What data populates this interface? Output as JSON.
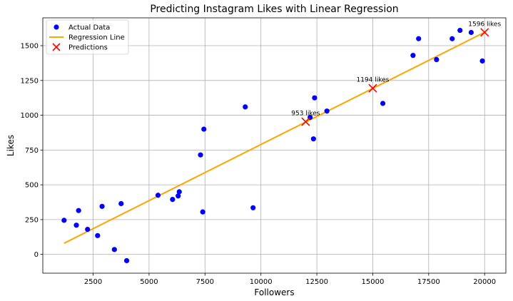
{
  "chart_data": {
    "type": "scatter",
    "title": "Predicting Instagram Likes with Linear Regression",
    "xlabel": "Followers",
    "ylabel": "Likes",
    "xlim": [
      250,
      20950
    ],
    "ylim": [
      -135,
      1700
    ],
    "xticks": [
      2500,
      5000,
      7500,
      10000,
      12500,
      15000,
      17500,
      20000
    ],
    "yticks": [
      0,
      250,
      500,
      750,
      1000,
      1250,
      1500
    ],
    "grid": true,
    "legend_position": "top-left",
    "colors": {
      "actual": "#0000ff",
      "regression": "#ffa500",
      "predictions": "#ff0000"
    },
    "series": [
      {
        "name": "Actual Data",
        "kind": "scatter",
        "points": [
          [
            1200,
            245
          ],
          [
            1750,
            210
          ],
          [
            1850,
            315
          ],
          [
            2250,
            180
          ],
          [
            2700,
            135
          ],
          [
            2900,
            345
          ],
          [
            3450,
            35
          ],
          [
            3750,
            365
          ],
          [
            4000,
            -45
          ],
          [
            5400,
            425
          ],
          [
            6050,
            395
          ],
          [
            6300,
            420
          ],
          [
            6350,
            450
          ],
          [
            7300,
            715
          ],
          [
            7400,
            305
          ],
          [
            7450,
            900
          ],
          [
            9300,
            1060
          ],
          [
            9650,
            335
          ],
          [
            12200,
            985
          ],
          [
            12350,
            830
          ],
          [
            12400,
            1125
          ],
          [
            12950,
            1030
          ],
          [
            15450,
            1085
          ],
          [
            16800,
            1430
          ],
          [
            17050,
            1550
          ],
          [
            17850,
            1400
          ],
          [
            18550,
            1550
          ],
          [
            18900,
            1610
          ],
          [
            19400,
            1595
          ],
          [
            19900,
            1390
          ]
        ]
      },
      {
        "name": "Regression Line",
        "kind": "line",
        "points": [
          [
            1200,
            80
          ],
          [
            20000,
            1596
          ]
        ]
      },
      {
        "name": "Predictions",
        "kind": "marker",
        "points": [
          [
            12000,
            953
          ],
          [
            15000,
            1194
          ],
          [
            20000,
            1596
          ]
        ]
      }
    ],
    "annotations": [
      "953 likes",
      "1194 likes",
      "1596 likes"
    ]
  }
}
